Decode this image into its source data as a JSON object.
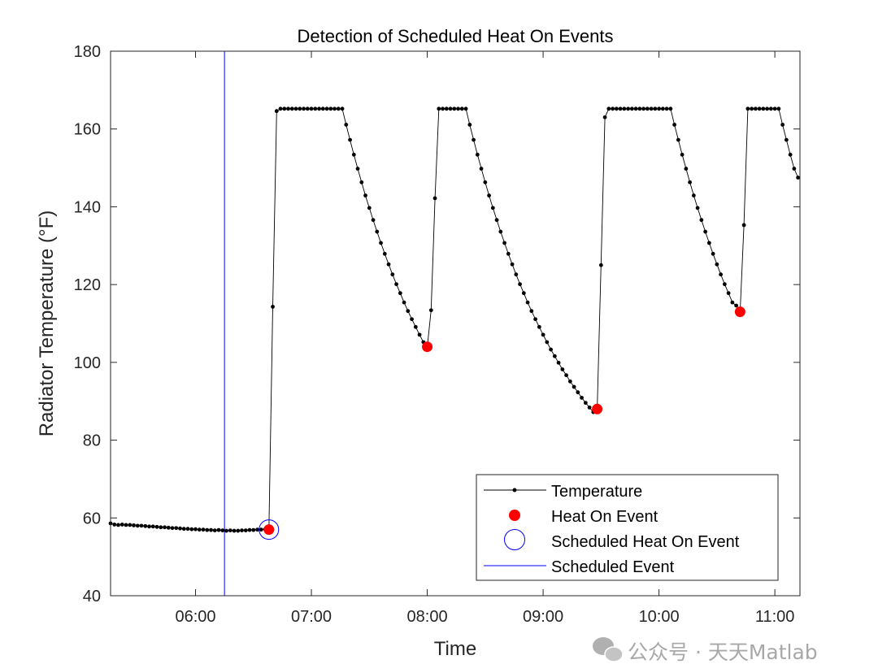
{
  "chart_data": {
    "type": "line",
    "title": "Detection of Scheduled Heat On Events",
    "xlabel": "Time",
    "ylabel": "Radiator Temperature (°F)",
    "xlim": [
      "05:16",
      "11:13"
    ],
    "ylim": [
      40,
      180
    ],
    "xticks": [
      "06:00",
      "07:00",
      "08:00",
      "09:00",
      "10:00",
      "11:00"
    ],
    "yticks": [
      40,
      60,
      80,
      100,
      120,
      140,
      160,
      180
    ],
    "grid": false,
    "legend_position": "bottom-right",
    "series": [
      {
        "name": "Temperature",
        "style": "line-with-dots",
        "color": "#000000",
        "x": [
          "05:16",
          "05:18",
          "05:20",
          "05:22",
          "05:24",
          "05:26",
          "05:28",
          "05:30",
          "05:32",
          "05:34",
          "05:36",
          "05:38",
          "05:40",
          "05:42",
          "05:44",
          "05:46",
          "05:48",
          "05:50",
          "05:52",
          "05:54",
          "05:56",
          "05:58",
          "06:00",
          "06:02",
          "06:04",
          "06:06",
          "06:08",
          "06:10",
          "06:12",
          "06:14",
          "06:16",
          "06:18",
          "06:20",
          "06:22",
          "06:24",
          "06:26",
          "06:28",
          "06:30",
          "06:32",
          "06:34",
          "06:36",
          "06:38",
          "06:40",
          "06:42",
          "06:44",
          "06:46",
          "06:48",
          "06:50",
          "06:52",
          "06:54",
          "06:56",
          "06:58",
          "07:00",
          "07:02",
          "07:04",
          "07:06",
          "07:08",
          "07:10",
          "07:12",
          "07:14",
          "07:16",
          "07:18",
          "07:20",
          "07:22",
          "07:24",
          "07:26",
          "07:28",
          "07:30",
          "07:32",
          "07:34",
          "07:36",
          "07:38",
          "07:40",
          "07:42",
          "07:44",
          "07:46",
          "07:48",
          "07:50",
          "07:52",
          "07:54",
          "07:56",
          "07:58",
          "08:00",
          "08:02",
          "08:04",
          "08:06",
          "08:08",
          "08:10",
          "08:12",
          "08:14",
          "08:16",
          "08:18",
          "08:20",
          "08:22",
          "08:24",
          "08:26",
          "08:28",
          "08:30",
          "08:32",
          "08:34",
          "08:36",
          "08:38",
          "08:40",
          "08:42",
          "08:44",
          "08:46",
          "08:48",
          "08:50",
          "08:52",
          "08:54",
          "08:56",
          "08:58",
          "09:00",
          "09:02",
          "09:04",
          "09:06",
          "09:08",
          "09:10",
          "09:12",
          "09:14",
          "09:16",
          "09:18",
          "09:20",
          "09:22",
          "09:24",
          "09:26",
          "09:28",
          "09:30",
          "09:32",
          "09:34",
          "09:36",
          "09:38",
          "09:40",
          "09:42",
          "09:44",
          "09:46",
          "09:48",
          "09:50",
          "09:52",
          "09:54",
          "09:56",
          "09:58",
          "10:00",
          "10:02",
          "10:04",
          "10:06",
          "10:08",
          "10:10",
          "10:12",
          "10:14",
          "10:16",
          "10:18",
          "10:20",
          "10:22",
          "10:24",
          "10:26",
          "10:28",
          "10:30",
          "10:32",
          "10:34",
          "10:36",
          "10:38",
          "10:40",
          "10:42",
          "10:44",
          "10:46",
          "10:48",
          "10:50",
          "10:52",
          "10:54",
          "10:56",
          "10:58",
          "11:00",
          "11:02",
          "11:04",
          "11:06",
          "11:08",
          "11:10",
          "11:12"
        ],
        "y": [
          58.6,
          58.3,
          58.2,
          58.3,
          58.2,
          58.2,
          58.1,
          58.0,
          58.0,
          57.9,
          57.8,
          57.8,
          57.7,
          57.6,
          57.6,
          57.5,
          57.4,
          57.4,
          57.3,
          57.2,
          57.2,
          57.1,
          57.1,
          57.0,
          57.0,
          56.9,
          56.9,
          56.8,
          56.9,
          56.8,
          56.7,
          56.8,
          56.7,
          56.7,
          56.8,
          56.8,
          56.9,
          56.9,
          57.0,
          57.0,
          57.1,
          57.0,
          114.3,
          164.6,
          165.2,
          165.2,
          165.2,
          165.2,
          165.2,
          165.2,
          165.2,
          165.2,
          165.2,
          165.2,
          165.2,
          165.2,
          165.2,
          165.2,
          165.2,
          165.2,
          165.2,
          161.1,
          157.2,
          153.4,
          149.8,
          146.3,
          142.9,
          139.7,
          136.6,
          133.6,
          130.7,
          127.9,
          125.2,
          122.6,
          120.1,
          117.8,
          115.4,
          113.2,
          111.1,
          109.1,
          107.1,
          105.2,
          104.0,
          113.4,
          142.2,
          165.2,
          165.2,
          165.2,
          165.2,
          165.2,
          165.2,
          165.2,
          165.2,
          161.1,
          157.2,
          153.4,
          149.8,
          146.3,
          142.9,
          139.7,
          136.6,
          133.6,
          130.7,
          127.9,
          125.2,
          122.6,
          120.1,
          117.8,
          115.4,
          113.2,
          111.1,
          109.1,
          107.1,
          105.2,
          103.3,
          101.6,
          99.9,
          98.2,
          96.7,
          95.1,
          93.7,
          92.3,
          90.9,
          89.6,
          88.4,
          87.2,
          88.0,
          125.0,
          163.0,
          165.2,
          165.2,
          165.2,
          165.2,
          165.2,
          165.2,
          165.2,
          165.2,
          165.2,
          165.2,
          165.2,
          165.2,
          165.2,
          165.2,
          165.2,
          165.2,
          165.2,
          161.1,
          157.2,
          153.4,
          149.8,
          146.3,
          142.9,
          139.7,
          136.6,
          133.6,
          130.7,
          127.9,
          125.2,
          122.6,
          120.1,
          117.8,
          115.4,
          114.6,
          113.0,
          135.3,
          165.2,
          165.2,
          165.2,
          165.2,
          165.2,
          165.2,
          165.2,
          165.2,
          165.2,
          161.1,
          157.2,
          153.4,
          149.8,
          147.5
        ]
      },
      {
        "name": "Heat On Event",
        "style": "filled-marker",
        "color": "#ff0000",
        "x": [
          "06:38",
          "08:00",
          "09:28",
          "10:42"
        ],
        "y": [
          57.0,
          104.0,
          88.0,
          113.0
        ]
      },
      {
        "name": "Scheduled Heat On Event",
        "style": "open-circle",
        "color": "#0000ff",
        "x": [
          "06:38"
        ],
        "y": [
          57.0
        ]
      },
      {
        "name": "Scheduled Event",
        "style": "vertical-line",
        "color": "#0000ff",
        "x": [
          "06:15"
        ]
      }
    ]
  },
  "watermark": {
    "text": "公众号 · 天天Matlab",
    "icon": "wechat-icon"
  }
}
